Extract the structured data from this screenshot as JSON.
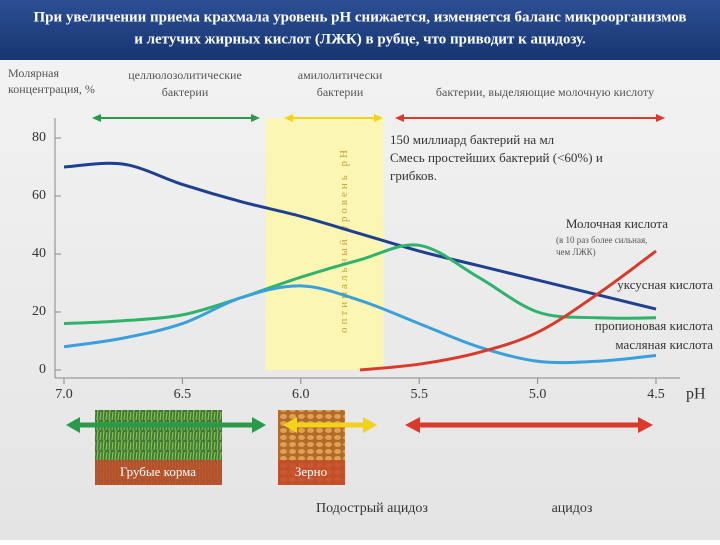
{
  "header": {
    "title_lines": [
      "При увеличении приема крахмала уровень pH снижается, изменяется баланс микроорганизмов",
      "и летучих жирных кислот (ЛЖК) в рубце, что приводит к ацидозу."
    ]
  },
  "chart_data": {
    "type": "line",
    "y_label_lines": [
      "Молярная",
      "концентрация, %"
    ],
    "x_label": "pH",
    "x": [
      7.0,
      6.75,
      6.5,
      6.25,
      6.0,
      5.75,
      5.5,
      5.25,
      5.0,
      4.75,
      4.5
    ],
    "xlim": [
      7.0,
      4.5
    ],
    "xticks": [
      {
        "value": 7,
        "label": "7.0"
      },
      6.5,
      {
        "value": 6,
        "label": "6.0"
      },
      5.5,
      {
        "value": 5,
        "label": "5.0"
      },
      4.5
    ],
    "ylim": [
      0,
      80
    ],
    "yticks": [
      0,
      20,
      40,
      60,
      80
    ],
    "series": [
      {
        "name": "уксусная кислота",
        "color": "#1f3f8f",
        "values": [
          70,
          71,
          64,
          58,
          53,
          47,
          41,
          36,
          31,
          26,
          21
        ]
      },
      {
        "name": "пропионовая кислота",
        "color": "#2fb36a",
        "values": [
          16,
          17,
          19,
          25,
          32,
          38,
          43,
          32,
          20,
          18,
          18
        ]
      },
      {
        "name": "масляная кислота",
        "color": "#3aa0dc",
        "values": [
          8,
          11,
          16,
          25,
          29,
          24,
          16,
          8,
          3,
          3,
          5
        ]
      },
      {
        "name": "Молочная кислота",
        "color": "#d93a2b",
        "values": [
          null,
          null,
          null,
          null,
          null,
          0,
          2,
          6,
          13,
          26,
          41
        ],
        "note_lines": [
          "(в 10 раз более сильная,",
          "чем ЛЖК)"
        ]
      }
    ],
    "optimal_zone": {
      "label": "оптимальный уровень pH",
      "range": [
        6.15,
        5.65
      ]
    },
    "bacteria": [
      {
        "label_lines": [
          "целлюлозолитические",
          "бактерии"
        ],
        "color": "#2a9a4a"
      },
      {
        "label_lines": [
          "амилолитически",
          "бактерии"
        ],
        "color": "#f2d31b"
      },
      {
        "label_lines": [
          "бактерии, выделяющие молочную кислоту"
        ],
        "color": "#d93a2b"
      }
    ],
    "annotation_lines": [
      "150 миллиард бактерий на мл",
      "Смесь простейших бактерий (<60%) и",
      "грибков."
    ],
    "feeds": [
      "Грубые корма",
      "Зерно"
    ],
    "acidosis": [
      "Подострый ацидоз",
      "ацидоз"
    ]
  }
}
